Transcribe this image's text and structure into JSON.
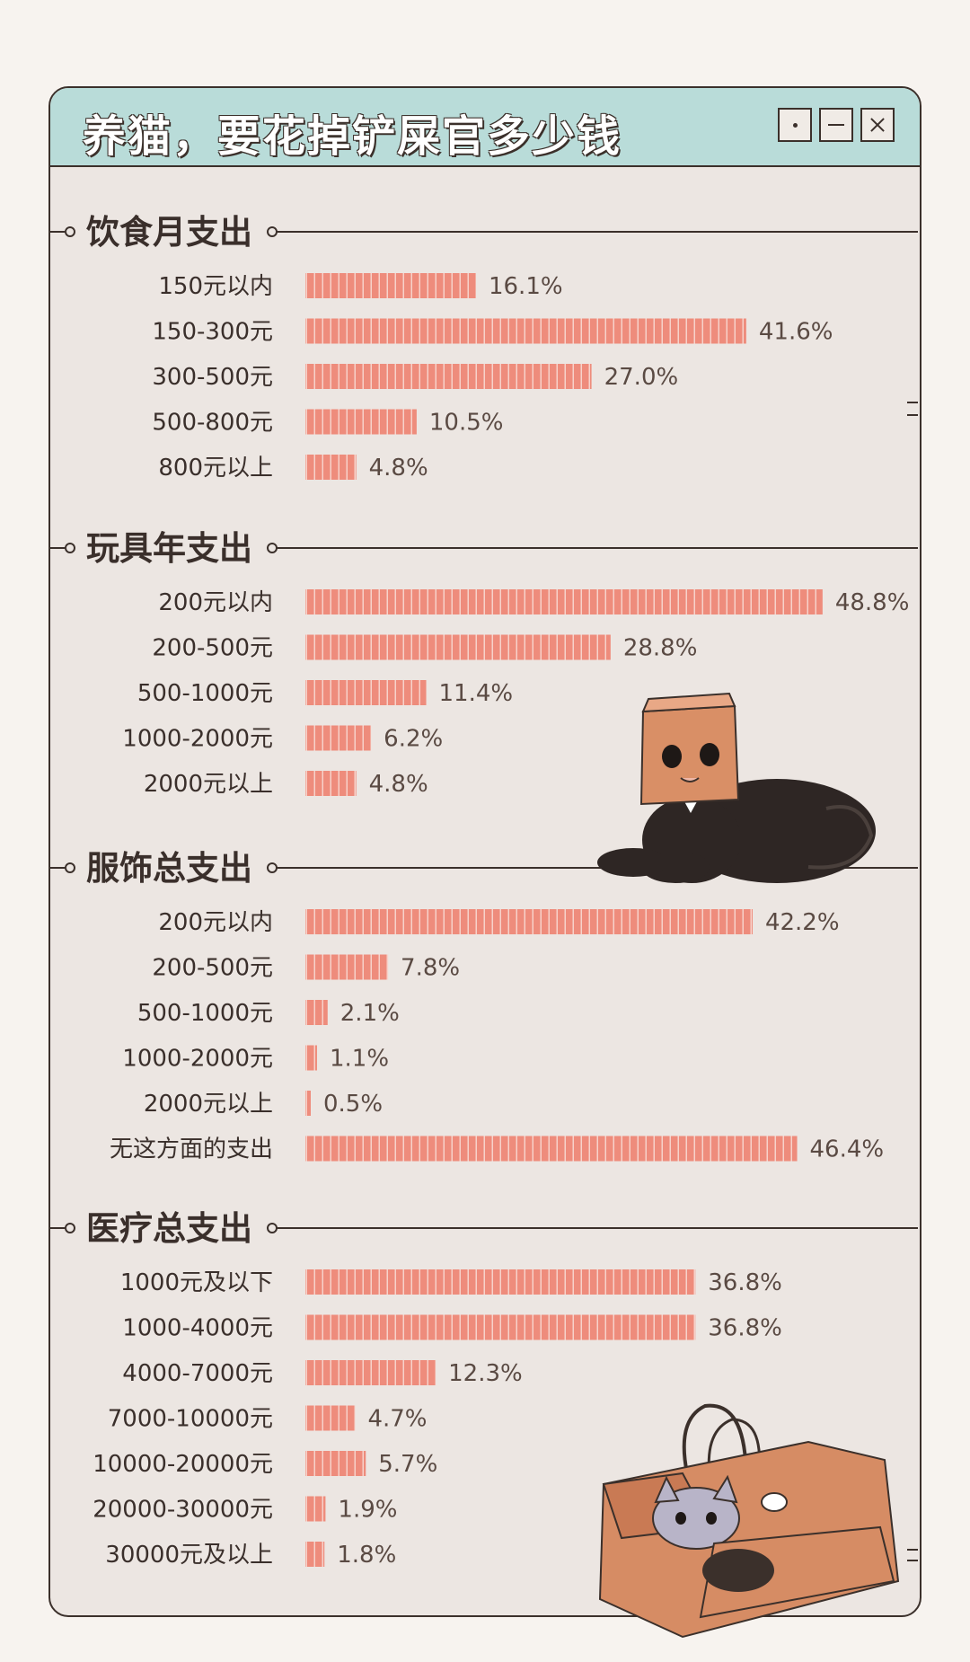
{
  "title": "养猫，要花掉铲屎官多少钱",
  "colors": {
    "bar": "#ee8c7c",
    "bar_stripe": "#f7d2ca",
    "panel": "#ece6e2",
    "titlebar": "#b9dcd9",
    "line": "#3b302b"
  },
  "window_buttons": [
    "dot-icon",
    "minimize-icon",
    "close-icon"
  ],
  "illustrations": [
    "paper-bag-cat-icon",
    "shopping-bag-cat-icon"
  ],
  "chart_data": [
    {
      "type": "bar",
      "title": "饮食月支出",
      "unit": "%",
      "categories": [
        "150元以内",
        "150-300元",
        "300-500元",
        "500-800元",
        "800元以上"
      ],
      "values": [
        16.1,
        41.6,
        27.0,
        10.5,
        4.8
      ],
      "labels": [
        "16.1%",
        "41.6%",
        "27.0%",
        "10.5%",
        "4.8%"
      ]
    },
    {
      "type": "bar",
      "title": "玩具年支出",
      "unit": "%",
      "categories": [
        "200元以内",
        "200-500元",
        "500-1000元",
        "1000-2000元",
        "2000元以上"
      ],
      "values": [
        48.8,
        28.8,
        11.4,
        6.2,
        4.8
      ],
      "labels": [
        "48.8%",
        "28.8%",
        "11.4%",
        "6.2%",
        "4.8%"
      ]
    },
    {
      "type": "bar",
      "title": "服饰总支出",
      "unit": "%",
      "categories": [
        "200元以内",
        "200-500元",
        "500-1000元",
        "1000-2000元",
        "2000元以上",
        "无这方面的支出"
      ],
      "values": [
        42.2,
        7.8,
        2.1,
        1.1,
        0.5,
        46.4
      ],
      "labels": [
        "42.2%",
        "7.8%",
        "2.1%",
        "1.1%",
        "0.5%",
        "46.4%"
      ]
    },
    {
      "type": "bar",
      "title": "医疗总支出",
      "unit": "%",
      "categories": [
        "1000元及以下",
        "1000-4000元",
        "4000-7000元",
        "7000-10000元",
        "10000-20000元",
        "20000-30000元",
        "30000元及以上"
      ],
      "values": [
        36.8,
        36.8,
        12.3,
        4.7,
        5.7,
        1.9,
        1.8
      ],
      "labels": [
        "36.8%",
        "36.8%",
        "12.3%",
        "4.7%",
        "5.7%",
        "1.9%",
        "1.8%"
      ]
    }
  ]
}
